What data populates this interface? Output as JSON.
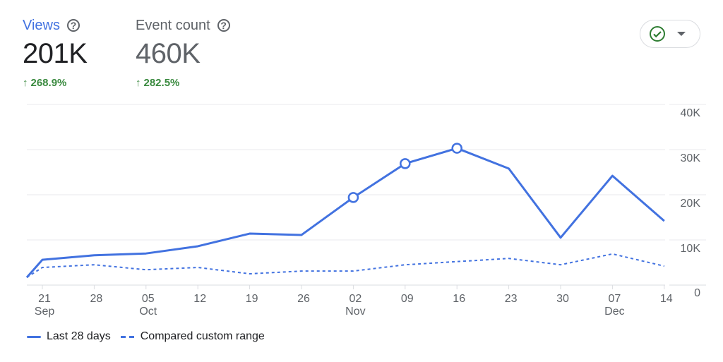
{
  "metrics": [
    {
      "label": "Views",
      "value": "201K",
      "change": "268.9%",
      "help_icon": "help-circle-icon"
    },
    {
      "label": "Event count",
      "value": "460K",
      "change": "282.5%",
      "help_icon": "help-circle-icon"
    }
  ],
  "status_button": {
    "icon": "check-circle-icon",
    "dropdown_icon": "caret-down-icon"
  },
  "chart_data": {
    "type": "line",
    "x_ticks": [
      {
        "day": "21",
        "month": "Sep"
      },
      {
        "day": "28",
        "month": ""
      },
      {
        "day": "05",
        "month": "Oct"
      },
      {
        "day": "12",
        "month": ""
      },
      {
        "day": "19",
        "month": ""
      },
      {
        "day": "26",
        "month": ""
      },
      {
        "day": "02",
        "month": "Nov"
      },
      {
        "day": "09",
        "month": ""
      },
      {
        "day": "16",
        "month": ""
      },
      {
        "day": "23",
        "month": ""
      },
      {
        "day": "30",
        "month": ""
      },
      {
        "day": "07",
        "month": "Dec"
      },
      {
        "day": "14",
        "month": ""
      }
    ],
    "x": [
      -0.3,
      0,
      1,
      2,
      3,
      4,
      5,
      6,
      7,
      8,
      9,
      10,
      11,
      12
    ],
    "series": [
      {
        "name": "Last 28 days",
        "style": "solid",
        "values": [
          1700,
          5600,
          6600,
          7000,
          8600,
          11400,
          11100,
          19400,
          26900,
          30300,
          25800,
          10500,
          24200,
          14200
        ],
        "markers_at": [
          7,
          8,
          9
        ]
      },
      {
        "name": "Compared custom range",
        "style": "dashed",
        "values": [
          1700,
          3900,
          4500,
          3400,
          3900,
          2500,
          3100,
          3100,
          4500,
          5200,
          5900,
          4500,
          6900,
          4200
        ]
      }
    ],
    "y_ticks": [
      "0",
      "10K",
      "20K",
      "30K",
      "40K"
    ],
    "ylim": [
      0,
      40000
    ],
    "grid": true,
    "legend_position": "bottom-left",
    "color": "#4272e0"
  }
}
